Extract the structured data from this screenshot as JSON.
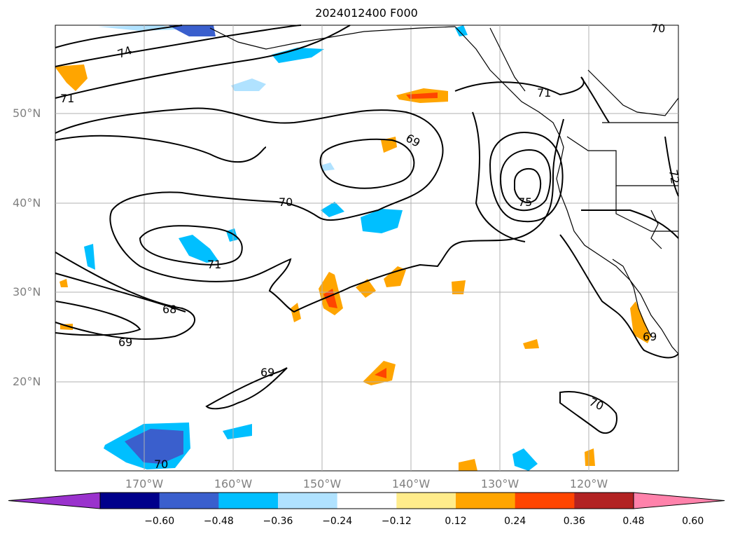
{
  "title": "2024012400 F000",
  "lat_labels": [
    "50°N",
    "40°N",
    "30°N",
    "20°N"
  ],
  "lon_labels": [
    "170°W",
    "160°W",
    "150°W",
    "140°W",
    "130°W",
    "120°W"
  ],
  "contour_labels": [
    "74",
    "71",
    "69",
    "70",
    "71",
    "68",
    "69",
    "69",
    "71",
    "75",
    "72",
    "69",
    "70",
    "70",
    "70"
  ],
  "colorbar": {
    "ticks": [
      "−0.60",
      "−0.48",
      "−0.36",
      "−0.24",
      "−0.12",
      "0.12",
      "0.24",
      "0.36",
      "0.48",
      "0.60"
    ],
    "colors": [
      "#9a32cd",
      "#00008b",
      "#3a5fcd",
      "#00bfff",
      "#b0e2ff",
      "#ffffff",
      "#ffec8b",
      "#ffa500",
      "#ff4500",
      "#b22222",
      "#ff82ab"
    ]
  }
}
